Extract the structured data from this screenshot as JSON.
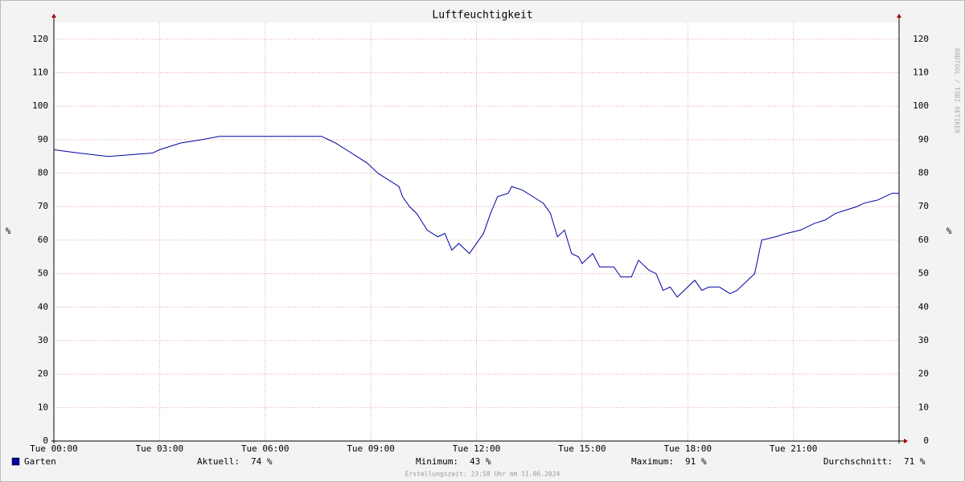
{
  "chart_data": {
    "type": "line",
    "title": "Luftfeuchtigkeit",
    "y_label": "%",
    "watermark": "RRDTOOL / TOBI OETIKER",
    "x": [
      0,
      0.7,
      1.55,
      2.8,
      3.0,
      3.3,
      3.6,
      4.2,
      4.7,
      7.6,
      7.8,
      8.0,
      8.3,
      8.6,
      8.9,
      9.2,
      9.5,
      9.8,
      9.9,
      10.1,
      10.3,
      10.6,
      10.9,
      11.1,
      11.3,
      11.5,
      11.8,
      12.0,
      12.2,
      12.4,
      12.6,
      12.9,
      13.0,
      13.3,
      13.6,
      13.9,
      14.1,
      14.3,
      14.5,
      14.7,
      14.9,
      15.0,
      15.3,
      15.5,
      15.9,
      16.1,
      16.4,
      16.6,
      16.9,
      17.1,
      17.3,
      17.5,
      17.7,
      18.0,
      18.2,
      18.4,
      18.6,
      18.9,
      19.2,
      19.4,
      19.6,
      19.9,
      20.0,
      20.1,
      20.5,
      20.8,
      21.2,
      21.6,
      21.9,
      22.2,
      22.5,
      22.8,
      23.0,
      23.4,
      23.6,
      23.8,
      24
    ],
    "series": [
      {
        "name": "Garten",
        "color": "#0000a0",
        "values": [
          87,
          86,
          85,
          86,
          87,
          88,
          89,
          90,
          91,
          91,
          90,
          89,
          87,
          85,
          83,
          80,
          78,
          76,
          73,
          70,
          68,
          63,
          61,
          62,
          57,
          59,
          56,
          59,
          62,
          68,
          73,
          74,
          76,
          75,
          73,
          71,
          68,
          61,
          63,
          56,
          55,
          53,
          56,
          52,
          52,
          49,
          49,
          54,
          51,
          50,
          45,
          46,
          43,
          46,
          48,
          45,
          46,
          46,
          44,
          45,
          47,
          50,
          55,
          60,
          61,
          62,
          63,
          65,
          66,
          68,
          69,
          70,
          71,
          72,
          73,
          74,
          74
        ]
      }
    ],
    "xlim": [
      0,
      24
    ],
    "xticks": [
      {
        "value": 0,
        "label": "Tue 00:00"
      },
      {
        "value": 3,
        "label": "Tue 03:00"
      },
      {
        "value": 6,
        "label": "Tue 06:00"
      },
      {
        "value": 9,
        "label": "Tue 09:00"
      },
      {
        "value": 12,
        "label": "Tue 12:00"
      },
      {
        "value": 15,
        "label": "Tue 15:00"
      },
      {
        "value": 18,
        "label": "Tue 18:00"
      },
      {
        "value": 21,
        "label": "Tue 21:00"
      }
    ],
    "ylim": [
      0,
      125
    ],
    "yticks": [
      0,
      10,
      20,
      30,
      40,
      50,
      60,
      70,
      80,
      90,
      100,
      110,
      120
    ],
    "grid": true,
    "stats": [
      {
        "label": "Aktuell:",
        "value": "74 %"
      },
      {
        "label": "Minimum:",
        "value": "43 %"
      },
      {
        "label": "Maximum:",
        "value": "91 %"
      },
      {
        "label": "Durchschnitt:",
        "value": "71 %"
      }
    ],
    "footer": "Erstellungszeit: 23:58 Uhr am 11.06.2024"
  }
}
